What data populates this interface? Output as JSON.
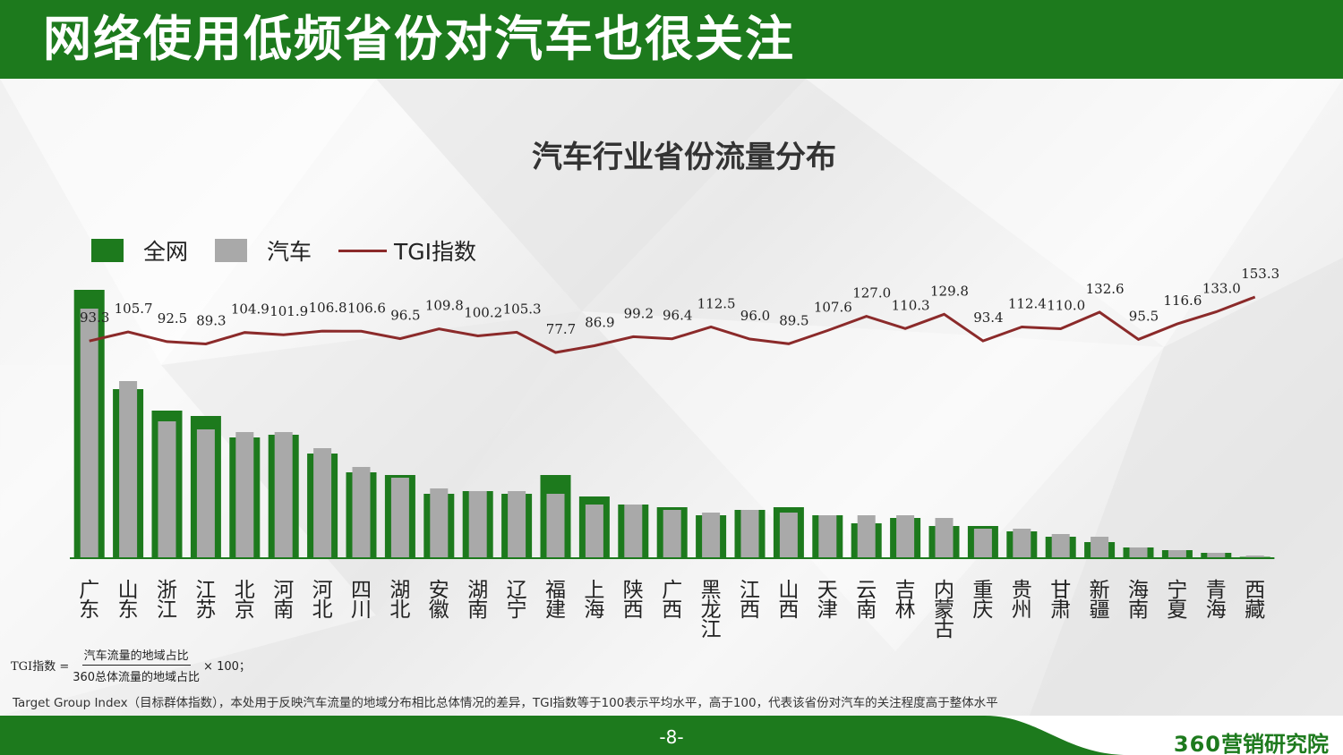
{
  "header": {
    "title": "网络使用低频省份对汽车也很关注"
  },
  "legend": {
    "series1": "全网",
    "series2": "汽车",
    "series3": "TGI指数"
  },
  "colors": {
    "green": "#1d7a1d",
    "gray": "#a9a9a9",
    "line": "#8b2a2a"
  },
  "chart_data": {
    "type": "bar",
    "title": "汽车行业省份流量分布",
    "categories": [
      "广东",
      "山东",
      "浙江",
      "江苏",
      "北京",
      "河南",
      "河北",
      "四川",
      "湖北",
      "安徽",
      "湖南",
      "辽宁",
      "福建",
      "上海",
      "陕西",
      "广西",
      "黑龙江",
      "江西",
      "山西",
      "天津",
      "云南",
      "吉林",
      "内蒙古",
      "重庆",
      "贵州",
      "甘肃",
      "新疆",
      "海南",
      "宁夏",
      "青海",
      "西藏"
    ],
    "series": [
      {
        "name": "全网",
        "values": [
          100,
          63,
          55,
          53,
          45,
          46,
          39,
          32,
          31,
          24,
          25,
          24,
          31,
          23,
          20,
          19,
          16,
          18,
          19,
          16,
          13,
          15,
          12,
          12,
          10,
          8,
          6,
          4,
          3,
          2,
          0.5
        ]
      },
      {
        "name": "汽车",
        "values": [
          93,
          66,
          51,
          48,
          47,
          47,
          41,
          34,
          30,
          26,
          25,
          25,
          24,
          20,
          20,
          18,
          17,
          18,
          17,
          16,
          16,
          16,
          15,
          11,
          11,
          9,
          8,
          4,
          3,
          2,
          1
        ]
      },
      {
        "name": "TGI指数",
        "type": "line",
        "values": [
          93.3,
          105.7,
          92.5,
          89.3,
          104.9,
          101.9,
          106.8,
          106.6,
          96.5,
          109.8,
          100.2,
          105.3,
          77.7,
          86.9,
          99.2,
          96.4,
          112.5,
          96.0,
          89.5,
          107.6,
          127.0,
          110.3,
          129.8,
          93.4,
          112.4,
          110.0,
          132.6,
          95.5,
          116.6,
          133.0,
          153.3
        ]
      }
    ],
    "tgi_labels": [
      "93.3",
      "105.7",
      "92.5",
      "89.3",
      "104.9",
      "101.9",
      "106.8",
      "106.6",
      "96.5",
      "109.8",
      "100.2",
      "105.3",
      "77.7",
      "86.9",
      "99.2",
      "96.4",
      "112.5",
      "96.0",
      "89.5",
      "107.6",
      "127.0",
      "110.3",
      "129.8",
      "93.4",
      "112.4",
      "110.0",
      "132.6",
      "95.5",
      "116.6",
      "133.0",
      "153.3"
    ]
  },
  "formula": {
    "lhs": "TGI指数 =",
    "numerator": "汽车流量的地域占比",
    "denominator": "360总体流量的地域占比",
    "rhs": "× 100；"
  },
  "note": "Target Group Index（目标群体指数），本处用于反映汽车流量的地域分布相比总体情况的差异，TGI指数等于100表示平均水平，高于100，代表该省份对汽车的关注程度高于整体水平",
  "footer": {
    "page": "-8-",
    "brand_num": "360",
    "brand_text": "营销研究院"
  }
}
